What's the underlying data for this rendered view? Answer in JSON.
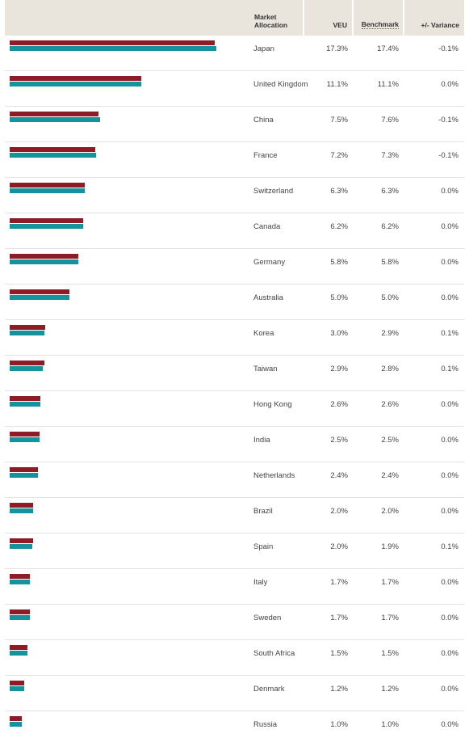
{
  "header": {
    "market": "Market Allocation",
    "veu": "VEU",
    "benchmark": "Benchmark",
    "variance": "+/- Variance"
  },
  "colors": {
    "veu": "#8e1c27",
    "benchmark": "#15939c",
    "header_bg": "#e9e5dc"
  },
  "chart_data": {
    "type": "bar",
    "orientation": "horizontal",
    "categories": [
      "Japan",
      "United Kingdom",
      "China",
      "France",
      "Switzerland",
      "Canada",
      "Germany",
      "Australia",
      "Korea",
      "Taiwan",
      "Hong Kong",
      "India",
      "Netherlands",
      "Brazil",
      "Spain",
      "Italy",
      "Sweden",
      "South Africa",
      "Denmark",
      "Russia"
    ],
    "series": [
      {
        "name": "VEU",
        "values": [
          17.3,
          11.1,
          7.5,
          7.2,
          6.3,
          6.2,
          5.8,
          5.0,
          3.0,
          2.9,
          2.6,
          2.5,
          2.4,
          2.0,
          2.0,
          1.7,
          1.7,
          1.5,
          1.2,
          1.0
        ]
      },
      {
        "name": "Benchmark",
        "values": [
          17.4,
          11.1,
          7.6,
          7.3,
          6.3,
          6.2,
          5.8,
          5.0,
          2.9,
          2.8,
          2.6,
          2.5,
          2.4,
          2.0,
          1.9,
          1.7,
          1.7,
          1.5,
          1.2,
          1.0
        ]
      }
    ],
    "table": {
      "veu": [
        "17.3%",
        "11.1%",
        "7.5%",
        "7.2%",
        "6.3%",
        "6.2%",
        "5.8%",
        "5.0%",
        "3.0%",
        "2.9%",
        "2.6%",
        "2.5%",
        "2.4%",
        "2.0%",
        "2.0%",
        "1.7%",
        "1.7%",
        "1.5%",
        "1.2%",
        "1.0%"
      ],
      "benchmark": [
        "17.4%",
        "11.1%",
        "7.6%",
        "7.3%",
        "6.3%",
        "6.2%",
        "5.8%",
        "5.0%",
        "2.9%",
        "2.8%",
        "2.6%",
        "2.5%",
        "2.4%",
        "2.0%",
        "1.9%",
        "1.7%",
        "1.7%",
        "1.5%",
        "1.2%",
        "1.0%"
      ],
      "variance": [
        "-0.1%",
        "0.0%",
        "-0.1%",
        "-0.1%",
        "0.0%",
        "0.0%",
        "0.0%",
        "0.0%",
        "0.1%",
        "0.1%",
        "0.0%",
        "0.0%",
        "0.0%",
        "0.0%",
        "0.1%",
        "0.0%",
        "0.0%",
        "0.0%",
        "0.0%",
        "0.0%"
      ]
    }
  }
}
